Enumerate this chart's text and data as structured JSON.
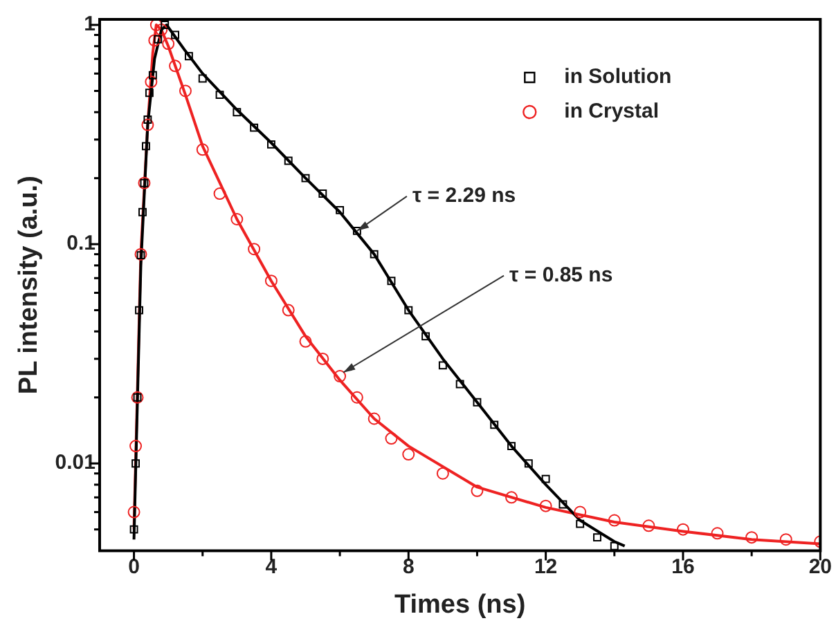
{
  "chart_data": {
    "type": "scatter",
    "xlabel": "Times (ns)",
    "ylabel": "PL intensity (a.u.)",
    "log": "y",
    "grid": false,
    "legend": "top right",
    "xlim": [
      -1,
      20
    ],
    "xticks": [
      0,
      {
        "value": 2,
        "label": null
      },
      4,
      {
        "value": 6,
        "label": null
      },
      8,
      {
        "value": 10,
        "label": null
      },
      12,
      {
        "value": 14,
        "label": null
      },
      16,
      {
        "value": 18,
        "label": null
      },
      20
    ],
    "ylim": [
      0.004,
      1.06
    ],
    "yticks": [
      {
        "value": 0.005,
        "label": null
      },
      {
        "value": 0.006,
        "label": null
      },
      {
        "value": 0.007,
        "label": null
      },
      {
        "value": 0.008,
        "label": null
      },
      {
        "value": 0.009,
        "label": null
      },
      0.01,
      {
        "value": 0.02,
        "label": null
      },
      {
        "value": 0.03,
        "label": null
      },
      {
        "value": 0.04,
        "label": null
      },
      {
        "value": 0.05,
        "label": null
      },
      {
        "value": 0.06,
        "label": null
      },
      {
        "value": 0.07,
        "label": null
      },
      {
        "value": 0.08,
        "label": null
      },
      {
        "value": 0.09,
        "label": null
      },
      0.1,
      {
        "value": 0.2,
        "label": null
      },
      {
        "value": 0.3,
        "label": null
      },
      {
        "value": 0.4,
        "label": null
      },
      {
        "value": 0.5,
        "label": null
      },
      {
        "value": 0.6,
        "label": null
      },
      {
        "value": 0.7,
        "label": null
      },
      {
        "value": 0.8,
        "label": null
      },
      {
        "value": 0.9,
        "label": null
      },
      1
    ],
    "annotations": [
      {
        "text": "τ = 2.29 ns",
        "x": 6.5,
        "y": 0.115
      },
      {
        "text": "τ = 0.85 ns",
        "x": 6.1,
        "y": 0.026
      }
    ],
    "series": [
      {
        "name": "in Solution",
        "type": "scatter",
        "marker": "square",
        "color": "#000000",
        "x": [
          0,
          0.05,
          0.1,
          0.15,
          0.2,
          0.25,
          0.3,
          0.35,
          0.4,
          0.45,
          0.55,
          0.7,
          0.9,
          1.2,
          1.6,
          2,
          2.5,
          3,
          3.5,
          4,
          4.5,
          5,
          5.5,
          6,
          6.5,
          7,
          7.5,
          8,
          8.5,
          9,
          9.5,
          10,
          10.5,
          11,
          11.5,
          12,
          12.5,
          13,
          13.5,
          14
        ],
        "values": [
          0.005,
          0.01,
          0.02,
          0.05,
          0.089,
          0.14,
          0.19,
          0.28,
          0.37,
          0.49,
          0.59,
          0.86,
          1.0,
          0.9,
          0.72,
          0.57,
          0.48,
          0.4,
          0.34,
          0.285,
          0.24,
          0.2,
          0.17,
          0.143,
          0.115,
          0.09,
          0.068,
          0.05,
          0.038,
          0.028,
          0.023,
          0.019,
          0.015,
          0.012,
          0.01,
          0.0085,
          0.0065,
          0.0053,
          0.0046,
          0.0042
        ]
      },
      {
        "name": "in Crystal",
        "type": "scatter",
        "marker": "circle",
        "color": "#ee2222",
        "x": [
          0,
          0.05,
          0.1,
          0.2,
          0.3,
          0.4,
          0.5,
          0.6,
          0.65,
          0.8,
          1,
          1.2,
          1.5,
          2,
          2.5,
          3,
          3.5,
          4,
          4.5,
          5,
          5.5,
          6,
          6.5,
          7,
          7.5,
          8,
          9,
          10,
          11,
          12,
          13,
          14,
          15,
          16,
          17,
          18,
          19,
          20
        ],
        "values": [
          0.006,
          0.012,
          0.02,
          0.09,
          0.19,
          0.35,
          0.55,
          0.85,
          1.0,
          0.95,
          0.82,
          0.65,
          0.5,
          0.27,
          0.17,
          0.13,
          0.095,
          0.068,
          0.05,
          0.036,
          0.03,
          0.025,
          0.02,
          0.016,
          0.013,
          0.011,
          0.009,
          0.0075,
          0.007,
          0.0064,
          0.006,
          0.0055,
          0.0052,
          0.005,
          0.0048,
          0.0046,
          0.0045,
          0.0044
        ]
      },
      {
        "type": "line",
        "marker": "none",
        "color": "#000000",
        "x": [
          0,
          0.2,
          0.4,
          0.6,
          0.8,
          0.95,
          1.5,
          2,
          3,
          4,
          5,
          6,
          7,
          8,
          9,
          10,
          11,
          12,
          13,
          14,
          14.3
        ],
        "values": [
          0.0045,
          0.08,
          0.35,
          0.7,
          0.95,
          1.0,
          0.76,
          0.6,
          0.41,
          0.29,
          0.2,
          0.14,
          0.09,
          0.05,
          0.03,
          0.019,
          0.012,
          0.008,
          0.0055,
          0.0044,
          0.0042
        ]
      },
      {
        "type": "line",
        "marker": "none",
        "color": "#ee2222",
        "x": [
          0,
          0.2,
          0.4,
          0.55,
          0.65,
          0.8,
          1,
          1.5,
          2,
          3,
          4,
          5,
          6,
          7,
          8,
          10,
          12,
          14,
          16,
          18,
          20
        ],
        "values": [
          0.005,
          0.09,
          0.35,
          0.75,
          1.0,
          0.95,
          0.8,
          0.48,
          0.28,
          0.13,
          0.068,
          0.038,
          0.024,
          0.016,
          0.012,
          0.0078,
          0.0063,
          0.0054,
          0.0049,
          0.0045,
          0.0043
        ]
      }
    ]
  }
}
